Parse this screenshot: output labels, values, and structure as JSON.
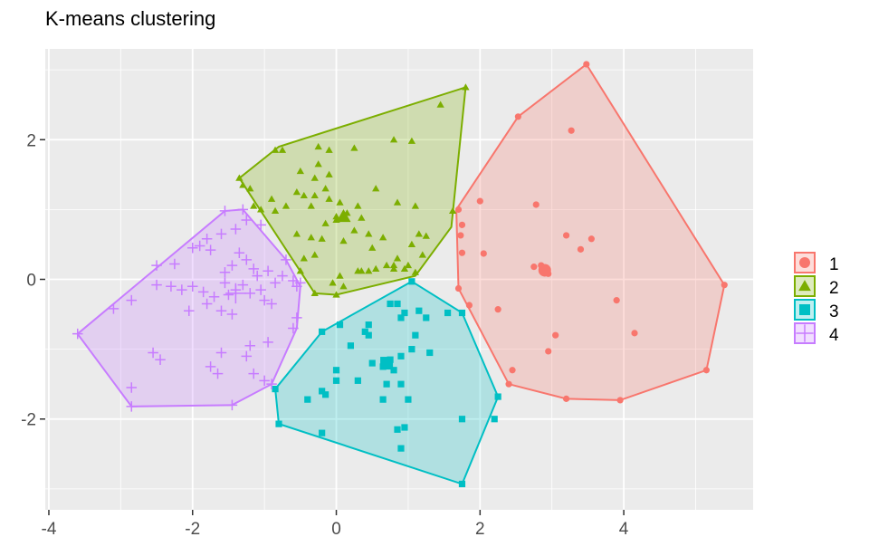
{
  "chart_data": {
    "type": "scatter",
    "title": "K-means clustering",
    "xlabel": "",
    "ylabel": "",
    "xlim": [
      -4.05,
      5.8
    ],
    "ylim": [
      -3.3,
      3.3
    ],
    "x_ticks": [
      -4,
      -2,
      0,
      2,
      4
    ],
    "y_ticks": [
      -2,
      0,
      2
    ],
    "x_tick_labels": [
      "-4",
      "-2",
      "0",
      "2",
      "4"
    ],
    "y_tick_labels": [
      "-2",
      "0",
      "2"
    ],
    "grid": true,
    "legend_position": "right",
    "legend_labels": [
      "1",
      "2",
      "3",
      "4"
    ],
    "series": [
      {
        "name": "1",
        "color": "#F8766D",
        "shape": "circle",
        "center": [
          2.9,
          0.13
        ],
        "hull": [
          [
            3.48,
            3.08
          ],
          [
            5.4,
            -0.08
          ],
          [
            5.15,
            -1.3
          ],
          [
            3.95,
            -1.73
          ],
          [
            3.2,
            -1.71
          ],
          [
            2.4,
            -1.5
          ],
          [
            1.7,
            -0.13
          ],
          [
            1.67,
            1.0
          ],
          [
            2.53,
            2.33
          ]
        ],
        "points": [
          [
            3.48,
            3.08
          ],
          [
            2.53,
            2.33
          ],
          [
            3.27,
            2.13
          ],
          [
            2.78,
            1.07
          ],
          [
            2.0,
            1.12
          ],
          [
            1.7,
            1.0
          ],
          [
            1.75,
            0.78
          ],
          [
            1.73,
            0.63
          ],
          [
            3.2,
            0.63
          ],
          [
            3.55,
            0.58
          ],
          [
            3.4,
            0.43
          ],
          [
            1.75,
            0.38
          ],
          [
            2.05,
            0.37
          ],
          [
            2.75,
            0.18
          ],
          [
            2.85,
            0.2
          ],
          [
            2.95,
            0.08
          ],
          [
            1.7,
            -0.13
          ],
          [
            1.85,
            -0.37
          ],
          [
            2.25,
            -0.43
          ],
          [
            3.9,
            -0.3
          ],
          [
            5.4,
            -0.08
          ],
          [
            3.05,
            -0.8
          ],
          [
            4.15,
            -0.77
          ],
          [
            2.95,
            -1.03
          ],
          [
            2.45,
            -1.3
          ],
          [
            5.15,
            -1.3
          ],
          [
            2.4,
            -1.5
          ],
          [
            3.2,
            -1.71
          ],
          [
            3.95,
            -1.73
          ]
        ]
      },
      {
        "name": "2",
        "color": "#7CAE00",
        "shape": "triangle",
        "center": [
          0.1,
          0.9
        ],
        "hull": [
          [
            1.8,
            2.75
          ],
          [
            1.6,
            0.75
          ],
          [
            1.1,
            0.05
          ],
          [
            0.0,
            -0.22
          ],
          [
            -0.3,
            -0.2
          ],
          [
            -1.35,
            1.45
          ],
          [
            -0.8,
            1.9
          ]
        ],
        "points": [
          [
            1.8,
            2.75
          ],
          [
            1.45,
            2.5
          ],
          [
            1.05,
            1.98
          ],
          [
            0.8,
            2.0
          ],
          [
            -0.25,
            1.9
          ],
          [
            -0.1,
            1.85
          ],
          [
            0.25,
            1.88
          ],
          [
            -0.85,
            1.85
          ],
          [
            -0.75,
            1.85
          ],
          [
            -0.5,
            1.55
          ],
          [
            -0.25,
            1.65
          ],
          [
            -0.3,
            1.45
          ],
          [
            -1.35,
            1.45
          ],
          [
            -1.3,
            1.35
          ],
          [
            -1.2,
            1.3
          ],
          [
            -0.1,
            1.5
          ],
          [
            -0.15,
            1.3
          ],
          [
            -0.3,
            1.2
          ],
          [
            -0.45,
            1.2
          ],
          [
            -0.55,
            1.25
          ],
          [
            -0.7,
            1.05
          ],
          [
            -0.9,
            1.15
          ],
          [
            -1.05,
            1.0
          ],
          [
            -1.15,
            1.05
          ],
          [
            -0.85,
            0.98
          ],
          [
            -0.35,
            1.05
          ],
          [
            -0.1,
            1.15
          ],
          [
            0.05,
            1.1
          ],
          [
            0.3,
            1.05
          ],
          [
            0.55,
            1.3
          ],
          [
            0.85,
            1.1
          ],
          [
            1.1,
            1.05
          ],
          [
            1.62,
            0.98
          ],
          [
            0.15,
            0.95
          ],
          [
            0.35,
            0.88
          ],
          [
            0.0,
            0.85
          ],
          [
            -0.15,
            0.8
          ],
          [
            0.25,
            0.7
          ],
          [
            0.45,
            0.65
          ],
          [
            0.65,
            0.6
          ],
          [
            1.15,
            0.65
          ],
          [
            1.25,
            0.62
          ],
          [
            -0.55,
            0.65
          ],
          [
            -0.35,
            0.6
          ],
          [
            -0.2,
            0.58
          ],
          [
            0.1,
            0.55
          ],
          [
            1.05,
            0.5
          ],
          [
            0.5,
            0.45
          ],
          [
            -0.3,
            0.35
          ],
          [
            -0.45,
            0.3
          ],
          [
            0.85,
            0.3
          ],
          [
            0.8,
            0.2
          ],
          [
            1.2,
            0.35
          ],
          [
            -0.5,
            0.12
          ],
          [
            0.3,
            0.12
          ],
          [
            0.35,
            0.12
          ],
          [
            0.45,
            0.12
          ],
          [
            0.7,
            0.2
          ],
          [
            0.8,
            0.15
          ],
          [
            1.0,
            0.2
          ],
          [
            0.95,
            0.15
          ],
          [
            0.55,
            0.15
          ],
          [
            1.1,
            0.1
          ],
          [
            0.05,
            0.05
          ],
          [
            -0.05,
            -0.05
          ],
          [
            0.1,
            -0.1
          ],
          [
            -0.3,
            -0.2
          ],
          [
            0.0,
            -0.22
          ],
          [
            0.0,
            0.9
          ],
          [
            0.1,
            0.9
          ]
        ]
      },
      {
        "name": "3",
        "color": "#00BFC4",
        "shape": "square",
        "center": [
          0.7,
          -1.2
        ],
        "hull": [
          [
            1.05,
            -0.03
          ],
          [
            1.75,
            -0.48
          ],
          [
            2.25,
            -1.68
          ],
          [
            1.75,
            -2.93
          ],
          [
            -0.8,
            -2.07
          ],
          [
            -0.85,
            -1.57
          ],
          [
            -0.2,
            -0.75
          ]
        ],
        "points": [
          [
            1.05,
            -0.03
          ],
          [
            1.75,
            -0.48
          ],
          [
            1.55,
            -0.48
          ],
          [
            0.75,
            -0.35
          ],
          [
            0.85,
            -0.35
          ],
          [
            0.95,
            -0.48
          ],
          [
            1.15,
            -0.45
          ],
          [
            1.25,
            -0.55
          ],
          [
            0.9,
            -0.55
          ],
          [
            0.45,
            -0.65
          ],
          [
            0.4,
            -0.75
          ],
          [
            0.45,
            -0.8
          ],
          [
            -0.2,
            -0.75
          ],
          [
            0.05,
            -0.65
          ],
          [
            1.1,
            -0.8
          ],
          [
            0.2,
            -0.95
          ],
          [
            1.05,
            -1.0
          ],
          [
            1.3,
            -1.05
          ],
          [
            0.5,
            -1.2
          ],
          [
            0.9,
            -1.1
          ],
          [
            0.0,
            -1.3
          ],
          [
            0.65,
            -1.25
          ],
          [
            0.8,
            -1.3
          ],
          [
            0.75,
            -1.15
          ],
          [
            0.0,
            -1.45
          ],
          [
            0.3,
            -1.45
          ],
          [
            0.7,
            -1.5
          ],
          [
            0.9,
            -1.5
          ],
          [
            -0.2,
            -1.6
          ],
          [
            -0.15,
            -1.65
          ],
          [
            -0.4,
            -1.72
          ],
          [
            0.65,
            -1.72
          ],
          [
            1.0,
            -1.72
          ],
          [
            2.25,
            -1.68
          ],
          [
            1.75,
            -2.0
          ],
          [
            0.95,
            -2.12
          ],
          [
            0.85,
            -2.15
          ],
          [
            2.2,
            -2.0
          ],
          [
            -0.8,
            -2.07
          ],
          [
            -0.85,
            -1.57
          ],
          [
            -0.2,
            -2.2
          ],
          [
            0.9,
            -2.42
          ],
          [
            1.75,
            -2.93
          ]
        ]
      },
      {
        "name": "4",
        "color": "#C77CFF",
        "shape": "plus",
        "center": [
          -1.4,
          -0.2
        ],
        "hull": [
          [
            -1.3,
            1.0
          ],
          [
            -0.7,
            0.28
          ],
          [
            -0.5,
            -0.1
          ],
          [
            -0.55,
            -0.7
          ],
          [
            -0.9,
            -1.5
          ],
          [
            -1.45,
            -1.8
          ],
          [
            -2.85,
            -1.82
          ],
          [
            -3.6,
            -0.78
          ],
          [
            -1.55,
            0.98
          ]
        ],
        "points": [
          [
            -1.55,
            0.98
          ],
          [
            -1.3,
            1.0
          ],
          [
            -1.25,
            0.85
          ],
          [
            -1.05,
            0.78
          ],
          [
            -1.4,
            0.72
          ],
          [
            -1.6,
            0.65
          ],
          [
            -1.8,
            0.58
          ],
          [
            -1.9,
            0.48
          ],
          [
            -2.0,
            0.45
          ],
          [
            -1.75,
            0.42
          ],
          [
            -1.35,
            0.38
          ],
          [
            -1.25,
            0.28
          ],
          [
            -1.45,
            0.2
          ],
          [
            -1.55,
            0.1
          ],
          [
            -1.15,
            0.15
          ],
          [
            -1.1,
            0.05
          ],
          [
            -0.95,
            0.12
          ],
          [
            -0.7,
            0.28
          ],
          [
            -0.75,
            0.05
          ],
          [
            -0.85,
            -0.05
          ],
          [
            -0.6,
            -0.02
          ],
          [
            -0.55,
            -0.1
          ],
          [
            -0.5,
            -0.05
          ],
          [
            -2.5,
            0.2
          ],
          [
            -2.25,
            0.22
          ],
          [
            -2.5,
            -0.08
          ],
          [
            -2.3,
            -0.1
          ],
          [
            -2.15,
            -0.15
          ],
          [
            -2.0,
            -0.1
          ],
          [
            -1.85,
            -0.18
          ],
          [
            -1.7,
            -0.25
          ],
          [
            -1.55,
            -0.05
          ],
          [
            -1.5,
            -0.22
          ],
          [
            -1.4,
            -0.15
          ],
          [
            -1.3,
            -0.08
          ],
          [
            -1.2,
            -0.2
          ],
          [
            -1.05,
            -0.15
          ],
          [
            -1.0,
            -0.3
          ],
          [
            -0.9,
            -0.35
          ],
          [
            -1.8,
            -0.35
          ],
          [
            -1.6,
            -0.45
          ],
          [
            -1.45,
            -0.5
          ],
          [
            -2.05,
            -0.45
          ],
          [
            -3.1,
            -0.42
          ],
          [
            -2.85,
            -0.3
          ],
          [
            -0.55,
            -0.55
          ],
          [
            -0.6,
            -0.7
          ],
          [
            -0.95,
            -0.9
          ],
          [
            -1.2,
            -0.95
          ],
          [
            -1.6,
            -1.05
          ],
          [
            -2.55,
            -1.05
          ],
          [
            -2.45,
            -1.15
          ],
          [
            -1.25,
            -1.1
          ],
          [
            -1.75,
            -1.25
          ],
          [
            -1.65,
            -1.35
          ],
          [
            -1.15,
            -1.35
          ],
          [
            -1.0,
            -1.45
          ],
          [
            -0.9,
            -1.5
          ],
          [
            -2.85,
            -1.55
          ],
          [
            -1.45,
            -1.8
          ],
          [
            -2.85,
            -1.82
          ],
          [
            -3.6,
            -0.78
          ]
        ]
      }
    ]
  }
}
